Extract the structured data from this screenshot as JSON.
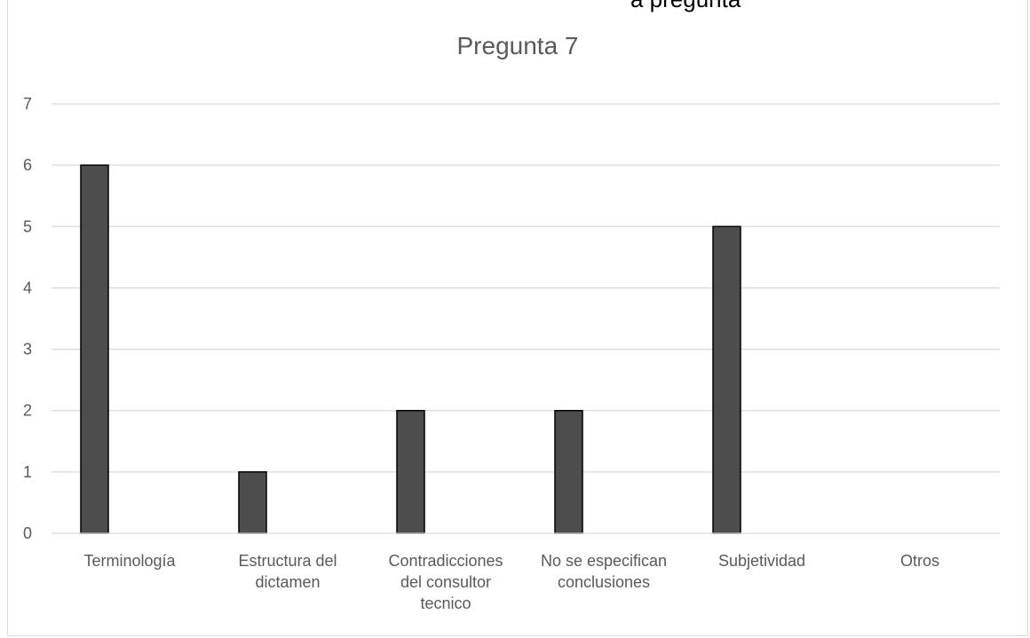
{
  "page": {
    "top_text": "a pregunta"
  },
  "chart_data": {
    "type": "bar",
    "title": "Pregunta 7",
    "categories": [
      [
        "Terminología"
      ],
      [
        "Estructura del",
        "dictamen"
      ],
      [
        "Contradicciones",
        "del consultor",
        "tecnico"
      ],
      [
        "No se especifican",
        "conclusiones"
      ],
      [
        "Subjetividad"
      ],
      [
        "Otros"
      ]
    ],
    "values": [
      6,
      1,
      2,
      2,
      5,
      0
    ],
    "ylim": [
      0,
      7
    ],
    "yticks": [
      0,
      1,
      2,
      3,
      4,
      5,
      6,
      7
    ],
    "grid": true,
    "legend": "none",
    "bar_color": "#4d4d4d",
    "bar_edge_color": "#000000",
    "grid_color": "#d9d9d9",
    "text_color": "#595959"
  }
}
